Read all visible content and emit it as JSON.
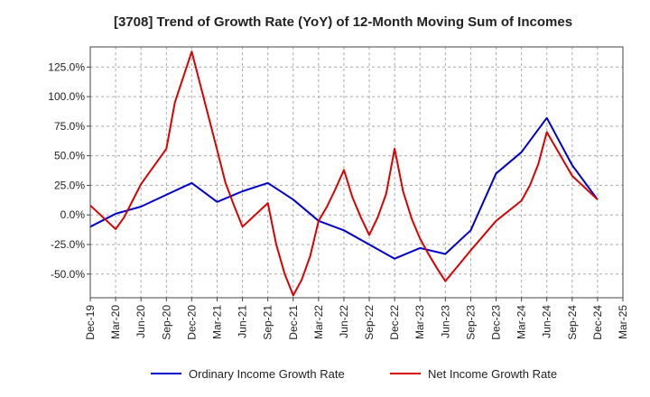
{
  "chart_data": {
    "type": "line",
    "title": "[3708]  Trend of Growth Rate (YoY) of 12-Month Moving Sum of Incomes",
    "xlabel": "",
    "ylabel": "",
    "x_tick_labels": [
      "Dec-19",
      "Mar-20",
      "Jun-20",
      "Sep-20",
      "Dec-20",
      "Mar-21",
      "Jun-21",
      "Sep-21",
      "Dec-21",
      "Mar-22",
      "Jun-22",
      "Sep-22",
      "Dec-22",
      "Mar-23",
      "Jun-23",
      "Sep-23",
      "Dec-23",
      "Mar-24",
      "Jun-24",
      "Sep-24",
      "Dec-24",
      "Mar-25"
    ],
    "y_tick_labels": [
      "-50.0%",
      "-25.0%",
      "0.0%",
      "25.0%",
      "50.0%",
      "75.0%",
      "100.0%",
      "125.0%"
    ],
    "y_ticks": [
      -50,
      -25,
      0,
      25,
      50,
      75,
      100,
      125
    ],
    "ylim": [
      -70,
      142
    ],
    "grid": true,
    "legend_position": "bottom",
    "series": [
      {
        "name": "Ordinary Income Growth Rate",
        "color": "#0000cc",
        "points": [
          [
            "Dec-19",
            -10
          ],
          [
            "Mar-20",
            1
          ],
          [
            "Jun-20",
            7
          ],
          [
            "Sep-20",
            17
          ],
          [
            "Dec-20",
            27
          ],
          [
            "Mar-21",
            11
          ],
          [
            "Jun-21",
            20
          ],
          [
            "Sep-21",
            27
          ],
          [
            "Dec-21",
            13
          ],
          [
            "Mar-22",
            -5
          ],
          [
            "Jun-22",
            -13
          ],
          [
            "Sep-22",
            -25
          ],
          [
            "Dec-22",
            -37
          ],
          [
            "Mar-23",
            -28
          ],
          [
            "Jun-23",
            -33
          ],
          [
            "Sep-23",
            -13
          ],
          [
            "Dec-23",
            35
          ],
          [
            "Mar-24",
            53
          ],
          [
            "Jun-24",
            82
          ],
          [
            "Sep-24",
            42
          ],
          [
            "Dec-24",
            13
          ]
        ]
      },
      {
        "name": "Net Income Growth Rate",
        "color": "#dd0000",
        "points": [
          [
            "Dec-19",
            8
          ],
          [
            "Mar-20",
            -12
          ],
          [
            "Apr-20",
            -2
          ],
          [
            "May-20",
            12
          ],
          [
            "Jun-20",
            26
          ],
          [
            "Sep-20",
            56
          ],
          [
            "Oct-20",
            95
          ],
          [
            "Dec-20",
            138
          ],
          [
            "Mar-21",
            55
          ],
          [
            "Apr-21",
            27
          ],
          [
            "May-21",
            8
          ],
          [
            "Jun-21",
            -10
          ],
          [
            "Sep-21",
            10
          ],
          [
            "Oct-21",
            -25
          ],
          [
            "Nov-21",
            -50
          ],
          [
            "Dec-21",
            -68
          ],
          [
            "Jan-22",
            -55
          ],
          [
            "Feb-22",
            -35
          ],
          [
            "Mar-22",
            -5
          ],
          [
            "Apr-22",
            7
          ],
          [
            "May-22",
            22
          ],
          [
            "Jun-22",
            38
          ],
          [
            "Jul-22",
            15
          ],
          [
            "Aug-22",
            -2
          ],
          [
            "Sep-22",
            -17
          ],
          [
            "Oct-22",
            -2
          ],
          [
            "Nov-22",
            18
          ],
          [
            "Dec-22",
            56
          ],
          [
            "Jan-23",
            20
          ],
          [
            "Feb-23",
            -3
          ],
          [
            "Mar-23",
            -20
          ],
          [
            "Apr-23",
            -33
          ],
          [
            "May-23",
            -45
          ],
          [
            "Jun-23",
            -56
          ],
          [
            "Sep-23",
            -30
          ],
          [
            "Dec-23",
            -5
          ],
          [
            "Mar-24",
            12
          ],
          [
            "Apr-24",
            25
          ],
          [
            "May-24",
            43
          ],
          [
            "Jun-24",
            70
          ],
          [
            "Sep-24",
            33
          ],
          [
            "Dec-24",
            13
          ]
        ]
      }
    ]
  }
}
